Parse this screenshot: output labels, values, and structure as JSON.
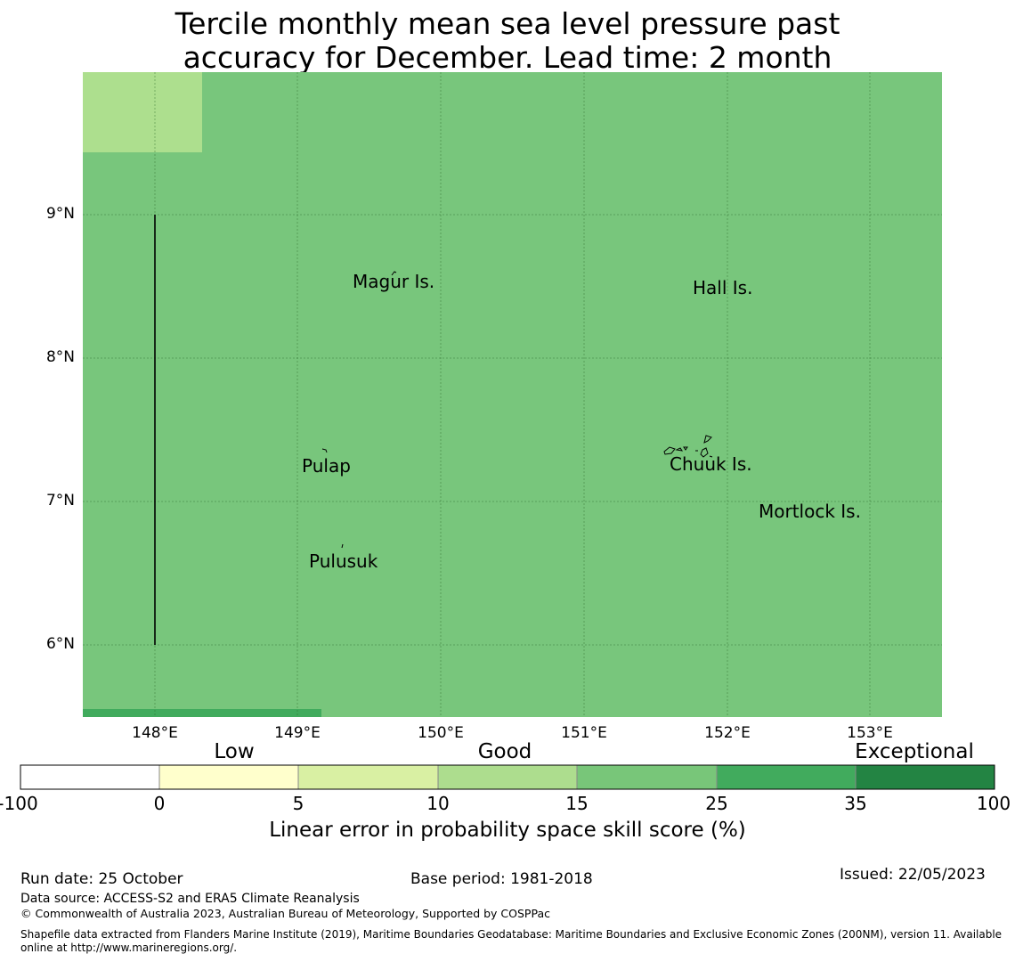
{
  "title": {
    "line1": "Tercile monthly mean sea level pressure past",
    "line2": "accuracy for December. Lead time: 2 month"
  },
  "map": {
    "lat_labels": [
      "9°N",
      "8°N",
      "7°N",
      "6°N"
    ],
    "lon_labels": [
      "148°E",
      "149°E",
      "150°E",
      "151°E",
      "152°E",
      "153°E"
    ],
    "lat_range": [
      5.5,
      10.0
    ],
    "lon_range": [
      147.5,
      153.5
    ],
    "colors": {
      "background_skill": "#78c67c",
      "corner_cell": "#addf8e",
      "bottom_strip": "#41ab5d"
    },
    "places": {
      "magur": "Magur Is.",
      "hall": "Hall Is.",
      "pulap": "Pulap",
      "chuuk": "Chuuk Is.",
      "mortlock": "Mortlock Is.",
      "pulusuk": "Pulusuk"
    }
  },
  "colorbar": {
    "categories": {
      "low": "Low",
      "good": "Good",
      "exceptional": "Exceptional"
    },
    "ticks": [
      "-100",
      "0",
      "5",
      "10",
      "15",
      "25",
      "35",
      "100"
    ],
    "colors": [
      "#ffffff",
      "#ffffcc",
      "#d9f0a3",
      "#addd8e",
      "#78c679",
      "#41ab5d",
      "#238443"
    ],
    "label": "Linear error in probability space skill score (%)"
  },
  "footer": {
    "run_date": "Run date: 25 October",
    "base_period": "Base period: 1981-2018",
    "issued": "Issued: 22/05/2023",
    "data_source": "Data source: ACCESS-S2 and ERA5 Climate Reanalysis",
    "copyright": "© Commonwealth of Australia 2023, Australian Bureau of Meteorology, Supported by COSPPac",
    "shapefile_line1": "Shapefile data extracted from Flanders Marine Institute (2019), Maritime Boundaries Geodatabase: Maritime Boundaries and Exclusive Economic Zones (200NM), version 11. Available",
    "shapefile_line2": "online at http://www.marineregions.org/."
  }
}
